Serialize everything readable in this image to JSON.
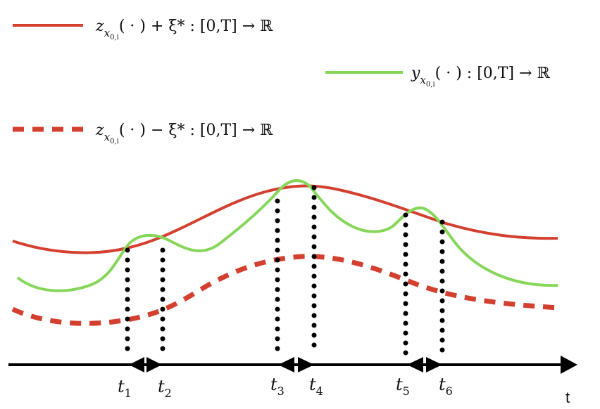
{
  "colors": {
    "upper_curve": "#d4402f",
    "lower_curve": "#d4402f",
    "output_curve": "#86d65a",
    "axis": "#000000",
    "dots": "#000000"
  },
  "legend": {
    "upper": {
      "sym": "z",
      "sub": "x",
      "subsub": "0,i",
      "rest": "( · ) + ξ* : [0,T] → ℝ"
    },
    "output": {
      "sym": "y",
      "sub": "x",
      "subsub": "0,i",
      "rest": "( · ) : [0,T] → ℝ"
    },
    "lower": {
      "sym": "z",
      "sub": "x",
      "subsub": "0,i",
      "rest": "( · ) − ξ* : [0,T] → ℝ"
    }
  },
  "axis": {
    "label": "t"
  },
  "time_marks": [
    {
      "name": "t",
      "index": "1"
    },
    {
      "name": "t",
      "index": "2"
    },
    {
      "name": "t",
      "index": "3"
    },
    {
      "name": "t",
      "index": "4"
    },
    {
      "name": "t",
      "index": "5"
    },
    {
      "name": "t",
      "index": "6"
    }
  ]
}
